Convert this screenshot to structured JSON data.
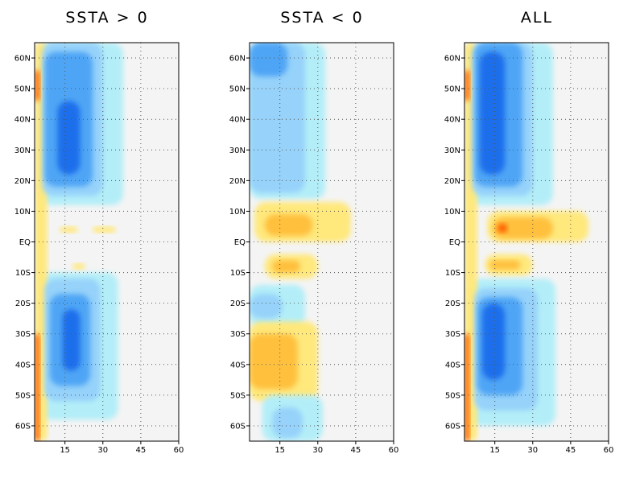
{
  "chart_data": [
    {
      "type": "heatmap",
      "title": "SSTA > 0",
      "xticks": [
        "15",
        "30",
        "45",
        "60"
      ],
      "yticks": [
        "60N",
        "50N",
        "40N",
        "30N",
        "20N",
        "10N",
        "EQ",
        "10S",
        "20S",
        "30S",
        "40S",
        "50S",
        "60S"
      ],
      "xlim": [
        3,
        60
      ],
      "ylim": [
        -65,
        65
      ],
      "grid": true,
      "colors": {
        "background": "#f4f4f4",
        "blue_1": "#b3eef8",
        "blue_2": "#96d2fa",
        "blue_3": "#50a5f5",
        "blue_4": "#1e6eeb",
        "yellow": "#ffe87c",
        "orange": "#ffc03c",
        "red_orange": "#ff6000",
        "dark_red": "#dc0000"
      },
      "features": [
        {
          "sign": "neg",
          "level": 1,
          "y": [
            12,
            65
          ],
          "x": [
            5,
            38
          ],
          "peak_y": 35,
          "peak_x": 18
        },
        {
          "sign": "neg",
          "level": 2,
          "y": [
            15,
            65
          ],
          "x": [
            6,
            30
          ]
        },
        {
          "sign": "neg",
          "level": 3,
          "y": [
            18,
            62
          ],
          "x": [
            7,
            26
          ]
        },
        {
          "sign": "neg",
          "level": 4,
          "y": [
            22,
            46
          ],
          "x": [
            12,
            21
          ]
        },
        {
          "sign": "neg",
          "level": 1,
          "y": [
            -58,
            -10
          ],
          "x": [
            5,
            36
          ],
          "peak_y": -30,
          "peak_x": 20
        },
        {
          "sign": "neg",
          "level": 2,
          "y": [
            -52,
            -12
          ],
          "x": [
            7,
            29
          ]
        },
        {
          "sign": "neg",
          "level": 3,
          "y": [
            -47,
            -17
          ],
          "x": [
            9,
            25
          ]
        },
        {
          "sign": "neg",
          "level": 4,
          "y": [
            -42,
            -22
          ],
          "x": [
            14,
            21
          ]
        },
        {
          "sign": "pos",
          "level": 1,
          "y": [
            -65,
            65
          ],
          "x": [
            3,
            8
          ],
          "note": "western boundary band"
        },
        {
          "sign": "pos",
          "level": 3,
          "y": [
            46,
            56
          ],
          "x": [
            3,
            5
          ]
        },
        {
          "sign": "pos",
          "level": 3,
          "y": [
            -65,
            -30
          ],
          "x": [
            3,
            5
          ]
        },
        {
          "sign": "pos",
          "level": 1,
          "y": [
            3,
            5
          ],
          "x": [
            13,
            20
          ]
        },
        {
          "sign": "pos",
          "level": 1,
          "y": [
            3,
            5
          ],
          "x": [
            26,
            35
          ]
        },
        {
          "sign": "pos",
          "level": 1,
          "y": [
            -9,
            -7
          ],
          "x": [
            18,
            23
          ]
        }
      ]
    },
    {
      "type": "heatmap",
      "title": "SSTA < 0",
      "xticks": [
        "15",
        "30",
        "45",
        "60"
      ],
      "yticks": [
        "60N",
        "50N",
        "40N",
        "30N",
        "20N",
        "10N",
        "EQ",
        "10S",
        "20S",
        "30S",
        "40S",
        "50S",
        "60S"
      ],
      "xlim": [
        3,
        60
      ],
      "ylim": [
        -65,
        65
      ],
      "grid": true,
      "features": [
        {
          "sign": "neg",
          "level": 1,
          "y": [
            14,
            65
          ],
          "x": [
            3,
            33
          ],
          "peak_y": 60,
          "peak_x": 12
        },
        {
          "sign": "neg",
          "level": 2,
          "y": [
            16,
            65
          ],
          "x": [
            3,
            25
          ]
        },
        {
          "sign": "neg",
          "level": 3,
          "y": [
            54,
            65
          ],
          "x": [
            3,
            18
          ]
        },
        {
          "sign": "pos",
          "level": 1,
          "y": [
            0,
            13
          ],
          "x": [
            5,
            43
          ],
          "peak_y": 5,
          "peak_x": 18
        },
        {
          "sign": "pos",
          "level": 2,
          "y": [
            2,
            9
          ],
          "x": [
            9,
            28
          ]
        },
        {
          "sign": "pos",
          "level": 1,
          "y": [
            -12,
            -4
          ],
          "x": [
            9,
            30
          ]
        },
        {
          "sign": "pos",
          "level": 2,
          "y": [
            -10,
            -6
          ],
          "x": [
            12,
            23
          ]
        },
        {
          "sign": "neg",
          "level": 1,
          "y": [
            -28,
            -14
          ],
          "x": [
            3,
            25
          ]
        },
        {
          "sign": "neg",
          "level": 2,
          "y": [
            -25,
            -17
          ],
          "x": [
            3,
            16
          ]
        },
        {
          "sign": "pos",
          "level": 1,
          "y": [
            -52,
            -26
          ],
          "x": [
            3,
            30
          ],
          "peak_y": -35,
          "peak_x": 10
        },
        {
          "sign": "pos",
          "level": 2,
          "y": [
            -48,
            -30
          ],
          "x": [
            3,
            22
          ]
        },
        {
          "sign": "neg",
          "level": 1,
          "y": [
            -65,
            -50
          ],
          "x": [
            8,
            32
          ]
        },
        {
          "sign": "neg",
          "level": 2,
          "y": [
            -64,
            -54
          ],
          "x": [
            12,
            24
          ]
        }
      ]
    },
    {
      "type": "heatmap",
      "title": "ALL",
      "xticks": [
        "15",
        "30",
        "45",
        "60"
      ],
      "yticks": [
        "60N",
        "50N",
        "40N",
        "30N",
        "20N",
        "10N",
        "EQ",
        "10S",
        "20S",
        "30S",
        "40S",
        "50S",
        "60S"
      ],
      "xlim": [
        3,
        60
      ],
      "ylim": [
        -65,
        65
      ],
      "grid": true,
      "features": [
        {
          "sign": "neg",
          "level": 1,
          "y": [
            12,
            65
          ],
          "x": [
            5,
            38
          ],
          "peak_y": 35,
          "peak_x": 18
        },
        {
          "sign": "neg",
          "level": 2,
          "y": [
            15,
            65
          ],
          "x": [
            6,
            30
          ]
        },
        {
          "sign": "neg",
          "level": 3,
          "y": [
            18,
            65
          ],
          "x": [
            7,
            26
          ]
        },
        {
          "sign": "neg",
          "level": 4,
          "y": [
            22,
            62
          ],
          "x": [
            9,
            19
          ]
        },
        {
          "sign": "pos",
          "level": 1,
          "y": [
            0,
            10
          ],
          "x": [
            12,
            52
          ],
          "peak_y": 4,
          "peak_x": 20
        },
        {
          "sign": "pos",
          "level": 2,
          "y": [
            1,
            8
          ],
          "x": [
            14,
            38
          ]
        },
        {
          "sign": "pos",
          "level": 3,
          "y": [
            3,
            6
          ],
          "x": [
            16,
            20
          ]
        },
        {
          "sign": "pos",
          "level": 1,
          "y": [
            -11,
            -4
          ],
          "x": [
            11,
            30
          ]
        },
        {
          "sign": "pos",
          "level": 2,
          "y": [
            -9,
            -6
          ],
          "x": [
            13,
            25
          ]
        },
        {
          "sign": "neg",
          "level": 1,
          "y": [
            -60,
            -12
          ],
          "x": [
            5,
            39
          ],
          "peak_y": -30,
          "peak_x": 16
        },
        {
          "sign": "neg",
          "level": 2,
          "y": [
            -55,
            -15
          ],
          "x": [
            7,
            32
          ]
        },
        {
          "sign": "neg",
          "level": 3,
          "y": [
            -50,
            -18
          ],
          "x": [
            8,
            26
          ]
        },
        {
          "sign": "neg",
          "level": 4,
          "y": [
            -45,
            -20
          ],
          "x": [
            10,
            19
          ]
        },
        {
          "sign": "pos",
          "level": 1,
          "y": [
            -65,
            65
          ],
          "x": [
            3,
            8
          ],
          "note": "western boundary band"
        },
        {
          "sign": "pos",
          "level": 3,
          "y": [
            46,
            56
          ],
          "x": [
            3,
            5
          ]
        },
        {
          "sign": "pos",
          "level": 3,
          "y": [
            -65,
            -30
          ],
          "x": [
            3,
            5
          ]
        }
      ]
    }
  ]
}
